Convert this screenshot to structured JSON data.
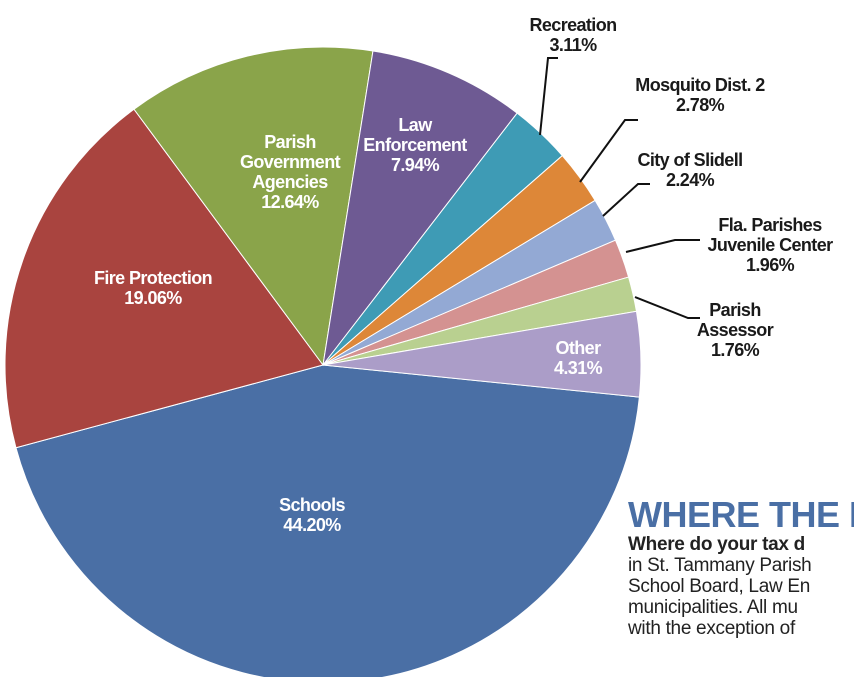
{
  "chart_data": {
    "type": "pie",
    "categories": [
      "Schools",
      "Fire Protection",
      "Parish Government Agencies",
      "Law Enforcement",
      "Recreation",
      "Mosquito Dist. 2",
      "City of Slidell",
      "Fla. Parishes Juvenile Center",
      "Parish Assessor",
      "Other"
    ],
    "values": [
      44.2,
      19.06,
      12.64,
      7.94,
      3.11,
      2.78,
      2.24,
      1.96,
      1.76,
      4.31
    ],
    "value_labels": [
      "44.20%",
      "19.06%",
      "12.64%",
      "7.94%",
      "3.11%",
      "2.78%",
      "2.24%",
      "1.96%",
      "1.76%",
      "4.31%"
    ],
    "colors": [
      "#4a6fa5",
      "#a9443f",
      "#8aa44a",
      "#6e5a93",
      "#3e9bb5",
      "#dd8738",
      "#93a9d4",
      "#d49291",
      "#b9d090",
      "#ab9dc8"
    ]
  },
  "article": {
    "heading": "WHERE THE M",
    "lines": [
      "Where do your tax d",
      "in St. Tammany Parish",
      "School Board, Law En",
      "municipalities. All mu",
      "with the exception of"
    ]
  }
}
